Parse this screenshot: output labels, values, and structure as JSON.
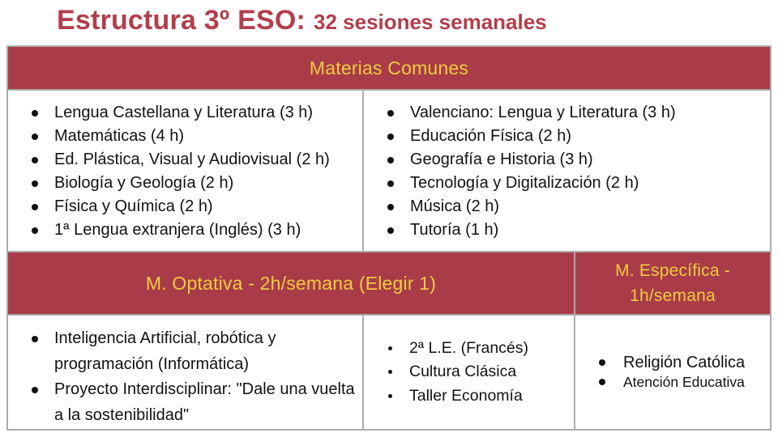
{
  "colors": {
    "title_red": "#b23e4c",
    "header_red": "#a93c48",
    "header_yellow": "#f1cb40",
    "border_gray": "#ababab",
    "text": "#121212"
  },
  "title": {
    "main": "Estructura 3º ESO:",
    "suffix": "32 sesiones semanales"
  },
  "table": {
    "header_common": "Materias Comunes",
    "common_left": [
      "Lengua Castellana y Literatura (3 h)",
      "Matemáticas (4 h)",
      "Ed. Plástica, Visual y Audiovisual (2 h)",
      "Biología y Geología (2 h)",
      "Física y Química (2 h)",
      "1ª Lengua extranjera (Inglés) (3 h)"
    ],
    "common_right": [
      "Valenciano: Lengua y Literatura (3 h)",
      "Educación Física (2 h)",
      "Geografía e Historia (3 h)",
      "Tecnología y Digitalización (2 h)",
      "Música (2 h)",
      "Tutoría (1 h)"
    ],
    "header_optativa": "M. Optativa - 2h/semana (Elegir 1)",
    "header_especifica": "M. Específica - 1h/semana",
    "optativa_left": [
      "Inteligencia Artificial, robótica y programación (Informática)",
      "Proyecto Interdisciplinar: \"Dale una vuelta a la sostenibilidad\""
    ],
    "optativa_middle": [
      "2ª L.E. (Francés)",
      "Cultura Clásica",
      "Taller Economía"
    ],
    "especifica_items": [
      "Religión Católica",
      "Atención Educativa"
    ]
  }
}
